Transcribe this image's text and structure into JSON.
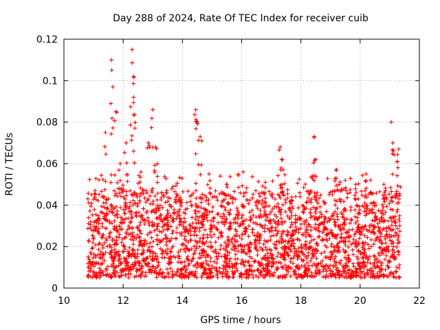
{
  "chart_data": {
    "type": "scatter",
    "title": "Day 288 of 2024, Rate Of TEC Index for receiver cuib",
    "xlabel": "GPS time / hours",
    "ylabel": "ROTI / TECUs",
    "xlim": [
      10,
      22
    ],
    "ylim": [
      0,
      0.12
    ],
    "xticks": [
      10,
      12,
      14,
      16,
      18,
      20,
      22
    ],
    "yticks": [
      0,
      0.02,
      0.04,
      0.06,
      0.08,
      0.1,
      0.12
    ],
    "xtick_labels": [
      "10",
      "12",
      "14",
      "16",
      "18",
      "20",
      "22"
    ],
    "ytick_labels": [
      "0",
      "0.02",
      "0.04",
      "0.06",
      "0.08",
      "0.1",
      "0.12"
    ],
    "grid": true,
    "marker": "+",
    "colors": {
      "series": "#ff0000",
      "grid": "#a0a0a0",
      "axis": "#000000"
    },
    "series": [
      {
        "name": "ROTI",
        "x_range_hours": [
          10.8,
          21.35
        ],
        "typical_band": [
          0.005,
          0.035
        ],
        "peaks": [
          {
            "x": 11.05,
            "y": 0.047
          },
          {
            "x": 11.4,
            "y": 0.075
          },
          {
            "x": 11.6,
            "y": 0.11
          },
          {
            "x": 11.65,
            "y": 0.097
          },
          {
            "x": 11.75,
            "y": 0.085
          },
          {
            "x": 11.9,
            "y": 0.06
          },
          {
            "x": 12.1,
            "y": 0.07
          },
          {
            "x": 12.3,
            "y": 0.115
          },
          {
            "x": 12.35,
            "y": 0.102
          },
          {
            "x": 12.35,
            "y": 0.092
          },
          {
            "x": 12.6,
            "y": 0.056
          },
          {
            "x": 12.85,
            "y": 0.07
          },
          {
            "x": 13.0,
            "y": 0.086
          },
          {
            "x": 13.1,
            "y": 0.068
          },
          {
            "x": 13.3,
            "y": 0.046
          },
          {
            "x": 14.45,
            "y": 0.086
          },
          {
            "x": 14.5,
            "y": 0.08
          },
          {
            "x": 14.6,
            "y": 0.073
          },
          {
            "x": 14.9,
            "y": 0.055
          },
          {
            "x": 15.5,
            "y": 0.05
          },
          {
            "x": 16.05,
            "y": 0.056
          },
          {
            "x": 16.8,
            "y": 0.051
          },
          {
            "x": 17.3,
            "y": 0.068
          },
          {
            "x": 17.35,
            "y": 0.062
          },
          {
            "x": 17.4,
            "y": 0.057
          },
          {
            "x": 18.45,
            "y": 0.073
          },
          {
            "x": 18.5,
            "y": 0.062
          },
          {
            "x": 19.2,
            "y": 0.057
          },
          {
            "x": 19.5,
            "y": 0.052
          },
          {
            "x": 19.85,
            "y": 0.05
          },
          {
            "x": 20.2,
            "y": 0.055
          },
          {
            "x": 20.35,
            "y": 0.052
          },
          {
            "x": 20.8,
            "y": 0.05
          },
          {
            "x": 21.05,
            "y": 0.08
          },
          {
            "x": 21.1,
            "y": 0.07
          },
          {
            "x": 21.3,
            "y": 0.067
          },
          {
            "x": 21.25,
            "y": 0.061
          }
        ]
      }
    ]
  }
}
